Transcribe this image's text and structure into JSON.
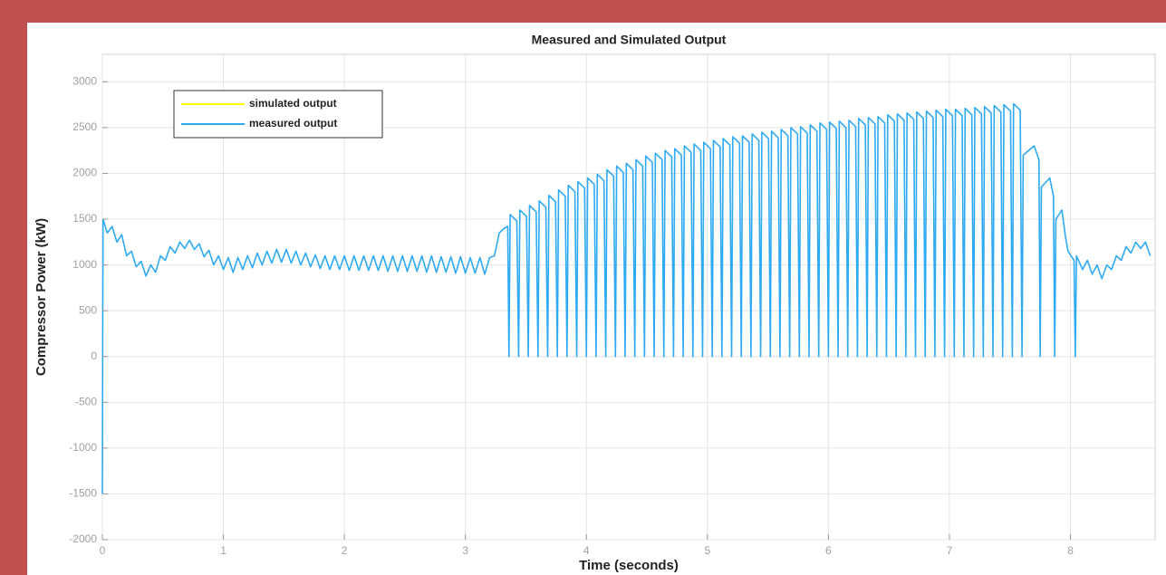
{
  "chart_data": {
    "type": "line",
    "title": "Measured and Simulated Output",
    "xlabel": "Time (seconds)",
    "ylabel": "Compressor Power (kW)",
    "xlim": [
      0,
      8.7
    ],
    "ylim": [
      -2000,
      3300
    ],
    "xticks": [
      0,
      1,
      2,
      3,
      4,
      5,
      6,
      7,
      8
    ],
    "yticks": [
      -2000,
      -1500,
      -1000,
      -500,
      0,
      500,
      1000,
      1500,
      2000,
      2500,
      3000
    ],
    "grid": true,
    "legend": "upper left",
    "x": [
      0,
      0.005,
      0.04,
      0.08,
      0.12,
      0.16,
      0.2,
      0.24,
      0.28,
      0.32,
      0.36,
      0.4,
      0.44,
      0.48,
      0.52,
      0.56,
      0.6,
      0.64,
      0.68,
      0.72,
      0.76,
      0.8,
      0.84,
      0.88,
      0.92,
      0.96,
      1,
      1.04,
      1.08,
      1.12,
      1.16,
      1.2,
      1.24,
      1.28,
      1.32,
      1.36,
      1.4,
      1.44,
      1.48,
      1.52,
      1.56,
      1.6,
      1.64,
      1.68,
      1.72,
      1.76,
      1.8,
      1.84,
      1.88,
      1.92,
      1.96,
      2,
      2.04,
      2.08,
      2.12,
      2.16,
      2.2,
      2.24,
      2.28,
      2.32,
      2.36,
      2.4,
      2.44,
      2.48,
      2.52,
      2.56,
      2.6,
      2.64,
      2.68,
      2.72,
      2.76,
      2.8,
      2.84,
      2.88,
      2.92,
      2.96,
      3,
      3.04,
      3.08,
      3.12,
      3.16,
      3.2,
      3.24,
      3.28,
      3.32,
      3.35,
      3.36,
      3.37,
      3.425,
      3.44,
      3.45,
      3.505,
      3.52,
      3.53,
      3.585,
      3.6,
      3.61,
      3.665,
      3.68,
      3.69,
      3.745,
      3.76,
      3.77,
      3.825,
      3.84,
      3.85,
      3.905,
      3.92,
      3.93,
      3.985,
      4,
      4.01,
      4.065,
      4.08,
      4.09,
      4.145,
      4.16,
      4.17,
      4.225,
      4.24,
      4.25,
      4.305,
      4.32,
      4.33,
      4.385,
      4.4,
      4.41,
      4.465,
      4.48,
      4.49,
      4.545,
      4.56,
      4.57,
      4.625,
      4.64,
      4.65,
      4.705,
      4.72,
      4.73,
      4.785,
      4.8,
      4.81,
      4.865,
      4.88,
      4.89,
      4.945,
      4.96,
      4.97,
      5.025,
      5.04,
      5.05,
      5.105,
      5.12,
      5.13,
      5.185,
      5.2,
      5.21,
      5.265,
      5.28,
      5.29,
      5.345,
      5.36,
      5.37,
      5.425,
      5.44,
      5.45,
      5.505,
      5.52,
      5.53,
      5.585,
      5.6,
      5.61,
      5.665,
      5.68,
      5.69,
      5.745,
      5.76,
      5.77,
      5.825,
      5.84,
      5.85,
      5.905,
      5.92,
      5.93,
      5.985,
      6,
      6.01,
      6.065,
      6.08,
      6.09,
      6.145,
      6.16,
      6.17,
      6.225,
      6.24,
      6.25,
      6.305,
      6.32,
      6.33,
      6.385,
      6.4,
      6.41,
      6.465,
      6.48,
      6.49,
      6.545,
      6.56,
      6.57,
      6.625,
      6.64,
      6.65,
      6.705,
      6.72,
      6.73,
      6.785,
      6.8,
      6.81,
      6.865,
      6.88,
      6.89,
      6.945,
      6.96,
      6.97,
      7.025,
      7.04,
      7.05,
      7.105,
      7.12,
      7.13,
      7.185,
      7.2,
      7.21,
      7.265,
      7.28,
      7.29,
      7.345,
      7.36,
      7.37,
      7.425,
      7.44,
      7.45,
      7.505,
      7.52,
      7.53,
      7.585,
      7.6,
      7.61,
      7.7,
      7.74,
      7.75,
      7.76,
      7.83,
      7.86,
      7.87,
      7.88,
      7.93,
      7.96,
      7.98,
      8.03,
      8.04,
      8.05,
      8.1,
      8.14,
      8.18,
      8.22,
      8.26,
      8.3,
      8.34,
      8.38,
      8.42,
      8.46,
      8.5,
      8.54,
      8.58,
      8.62,
      8.66
    ],
    "series": [
      {
        "name": "simulated output",
        "color": "#ffff00"
      },
      {
        "name": "measured output",
        "color": "#2eaaf5",
        "values": [
          -1500,
          1500,
          1350,
          1420,
          1250,
          1330,
          1100,
          1150,
          980,
          1040,
          880,
          1000,
          920,
          1100,
          1050,
          1200,
          1130,
          1250,
          1180,
          1270,
          1170,
          1230,
          1090,
          1160,
          1000,
          1100,
          950,
          1080,
          920,
          1080,
          950,
          1100,
          970,
          1130,
          1000,
          1150,
          1020,
          1170,
          1030,
          1170,
          1020,
          1150,
          1000,
          1130,
          980,
          1110,
          960,
          1100,
          950,
          1100,
          950,
          1100,
          940,
          1100,
          940,
          1100,
          940,
          1100,
          940,
          1100,
          930,
          1100,
          930,
          1100,
          930,
          1100,
          930,
          1100,
          920,
          1100,
          920,
          1090,
          920,
          1090,
          910,
          1090,
          910,
          1080,
          910,
          1080,
          900,
          1080,
          1100,
          1350,
          1400,
          1420,
          0,
          1550,
          1480,
          0,
          1600,
          1530,
          0,
          1650,
          1580,
          0,
          1700,
          1630,
          0,
          1760,
          1690,
          0,
          1820,
          1750,
          0,
          1870,
          1800,
          0,
          1910,
          1840,
          0,
          1950,
          1880,
          0,
          1990,
          1920,
          0,
          2040,
          1970,
          0,
          2080,
          2010,
          0,
          2110,
          2040,
          0,
          2150,
          2080,
          0,
          2190,
          2120,
          0,
          2220,
          2150,
          0,
          2250,
          2180,
          0,
          2270,
          2200,
          0,
          2300,
          2230,
          0,
          2320,
          2250,
          0,
          2340,
          2270,
          0,
          2360,
          2290,
          0,
          2380,
          2310,
          0,
          2400,
          2330,
          0,
          2410,
          2340,
          0,
          2430,
          2360,
          0,
          2450,
          2380,
          0,
          2460,
          2390,
          0,
          2480,
          2410,
          0,
          2500,
          2430,
          0,
          2510,
          2440,
          0,
          2530,
          2460,
          0,
          2550,
          2480,
          0,
          2560,
          2490,
          0,
          2570,
          2500,
          0,
          2580,
          2510,
          0,
          2600,
          2530,
          0,
          2610,
          2540,
          0,
          2620,
          2550,
          0,
          2640,
          2570,
          0,
          2650,
          2580,
          0,
          2660,
          2590,
          0,
          2670,
          2600,
          0,
          2680,
          2610,
          0,
          2690,
          2620,
          0,
          2700,
          2630,
          0,
          2700,
          2630,
          0,
          2710,
          2640,
          0,
          2720,
          2650,
          0,
          2730,
          2660,
          0,
          2740,
          2670,
          0,
          2750,
          2680,
          0,
          2760,
          2690,
          0,
          2200,
          2300,
          2150,
          0,
          1850,
          1950,
          1750,
          0,
          1500,
          1600,
          1300,
          1150,
          1050,
          0,
          1100,
          950,
          1050,
          900,
          1000,
          850,
          1000,
          950,
          1100,
          1050,
          1200,
          1130,
          1250,
          1180,
          1250,
          1100
        ]
      }
    ]
  }
}
